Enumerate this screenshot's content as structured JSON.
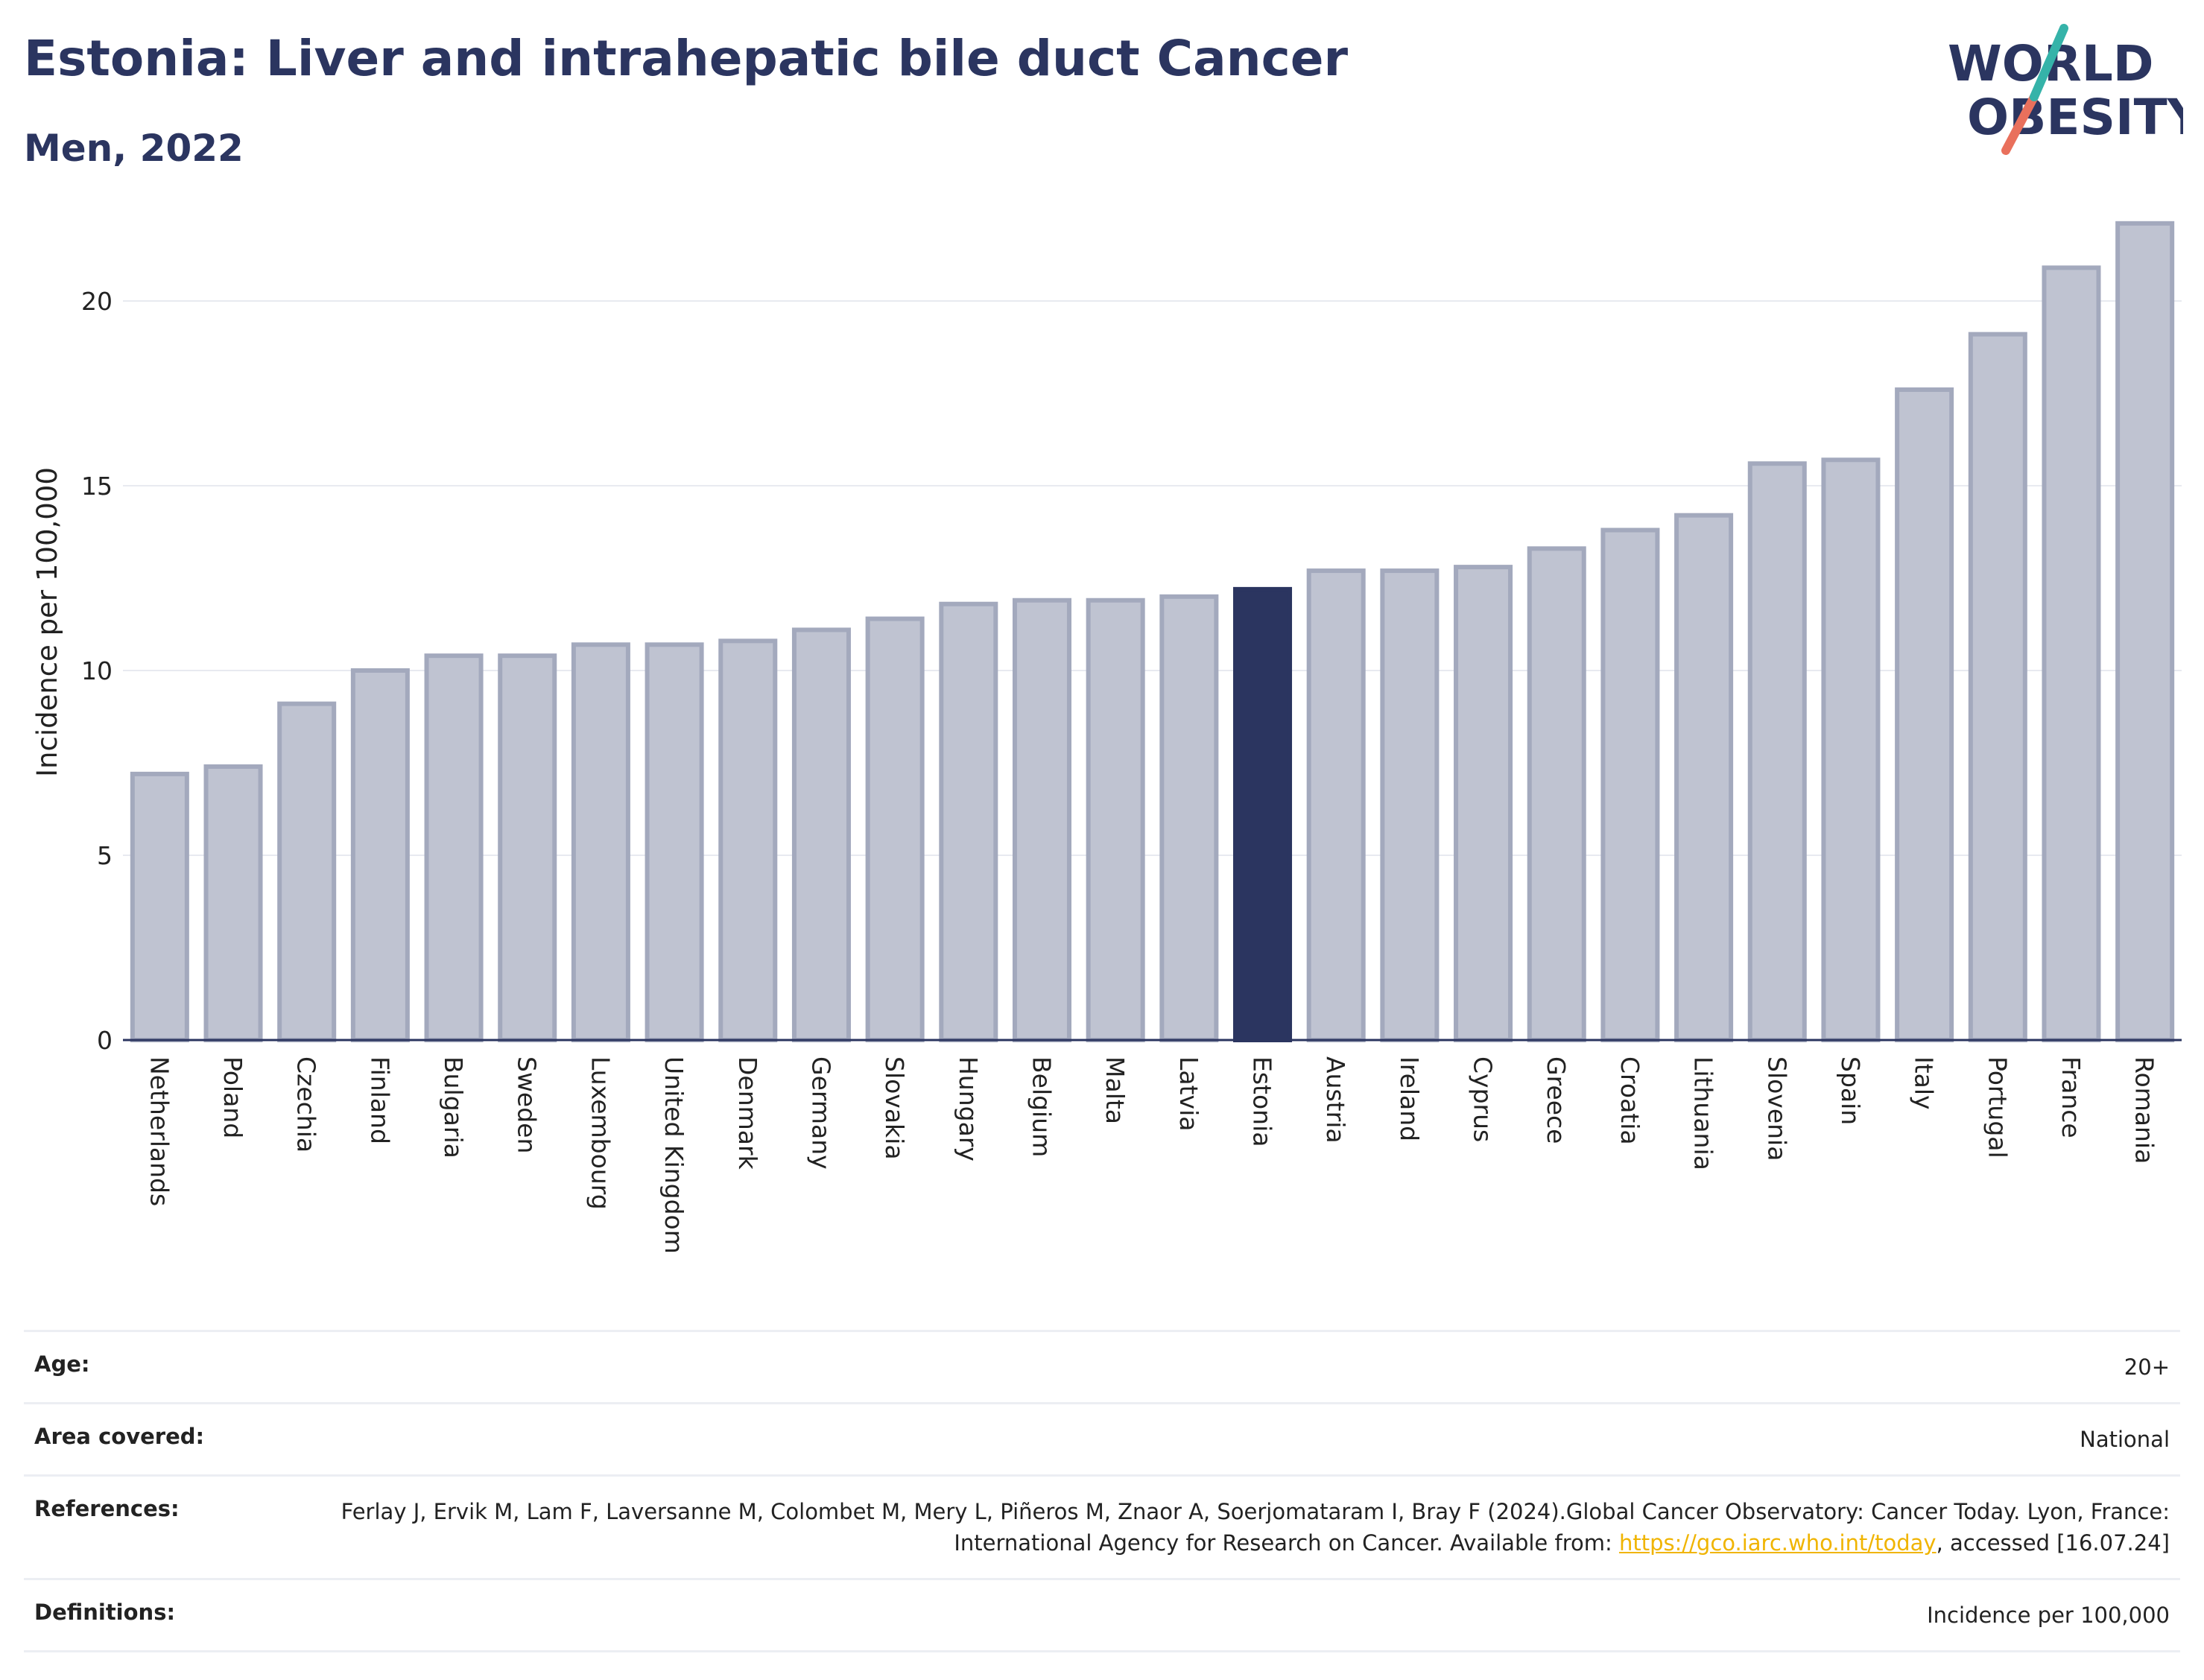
{
  "header": {
    "title": "Estonia: Liver and intrahepatic bile duct Cancer",
    "subtitle": "Men, 2022"
  },
  "logo": {
    "line1": "WORLD",
    "line2": "OBESITY"
  },
  "colors": {
    "highlight": "#2b3560",
    "bar": "#bfc3d1",
    "bar_edge": "#a3a9bd"
  },
  "chart_data": {
    "type": "bar",
    "ylabel": "Incidence per 100,000",
    "ylim": [
      0,
      22.5
    ],
    "yticks": [
      0,
      5,
      10,
      15,
      20
    ],
    "highlight": "Estonia",
    "categories": [
      "Netherlands",
      "Poland",
      "Czechia",
      "Finland",
      "Bulgaria",
      "Sweden",
      "Luxembourg",
      "United Kingdom",
      "Denmark",
      "Germany",
      "Slovakia",
      "Hungary",
      "Belgium",
      "Malta",
      "Latvia",
      "Estonia",
      "Austria",
      "Ireland",
      "Cyprus",
      "Greece",
      "Croatia",
      "Lithuania",
      "Slovenia",
      "Spain",
      "Italy",
      "Portugal",
      "France",
      "Romania"
    ],
    "values": [
      7.2,
      7.4,
      9.1,
      10.0,
      10.4,
      10.4,
      10.7,
      10.7,
      10.8,
      11.1,
      11.4,
      11.8,
      11.9,
      11.9,
      12.0,
      12.2,
      12.7,
      12.7,
      12.8,
      13.3,
      13.8,
      14.2,
      15.6,
      15.7,
      17.6,
      19.1,
      20.9,
      22.1
    ]
  },
  "meta": {
    "age_label": "Age:",
    "age_value": "20+",
    "area_label": "Area covered:",
    "area_value": "National",
    "ref_label": "References:",
    "ref_text_1": "Ferlay J, Ervik M, Lam F, Laversanne M, Colombet M, Mery L, Piñeros M, Znaor A, Soerjomataram I, Bray F (2024).Global Cancer Observatory: Cancer Today. Lyon, France: International Agency for Research on Cancer. Available from: ",
    "ref_link": "https://gco.iarc.who.int/today",
    "ref_text_2": ", accessed [16.07.24]",
    "def_label": "Definitions:",
    "def_value": "Incidence per 100,000"
  }
}
